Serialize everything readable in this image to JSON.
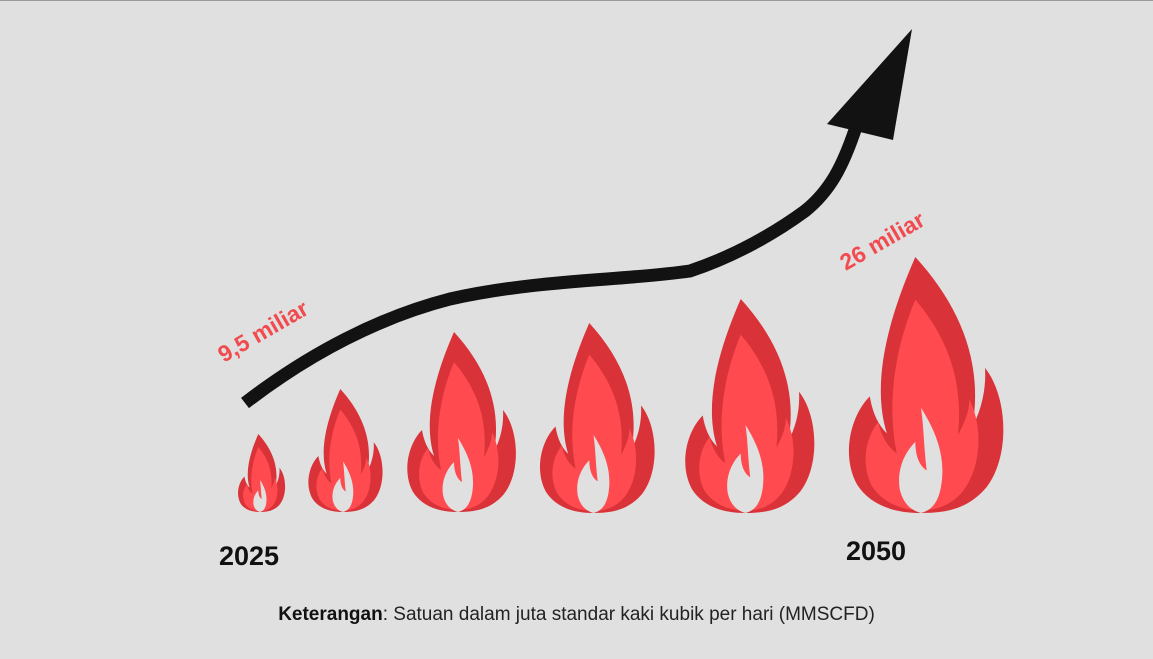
{
  "colors": {
    "background": "#e0e0e0",
    "flame_outer": "#d93238",
    "flame_inner": "#ff4a4f",
    "flame_core": "#e0e0e0",
    "arrow": "#121212",
    "value_label": "#f24b4f",
    "year_label": "#111111"
  },
  "icons": {
    "flame": "flame-icon",
    "arrow": "trend-arrow-up-icon"
  },
  "chart_data": {
    "type": "bar",
    "categories": [
      "2025",
      "",
      "",
      "",
      "",
      "2050"
    ],
    "values": [
      9.5,
      null,
      null,
      null,
      null,
      26
    ],
    "start_value_label": "9,5 miliar",
    "end_value_label": "26 miliar",
    "start_year_label": "2025",
    "end_year_label": "2050",
    "trend": "increasing"
  },
  "legend": {
    "title": "Keterangan",
    "text": ": Satuan dalam juta standar kaki kubik per hari (MMSCFD)"
  }
}
